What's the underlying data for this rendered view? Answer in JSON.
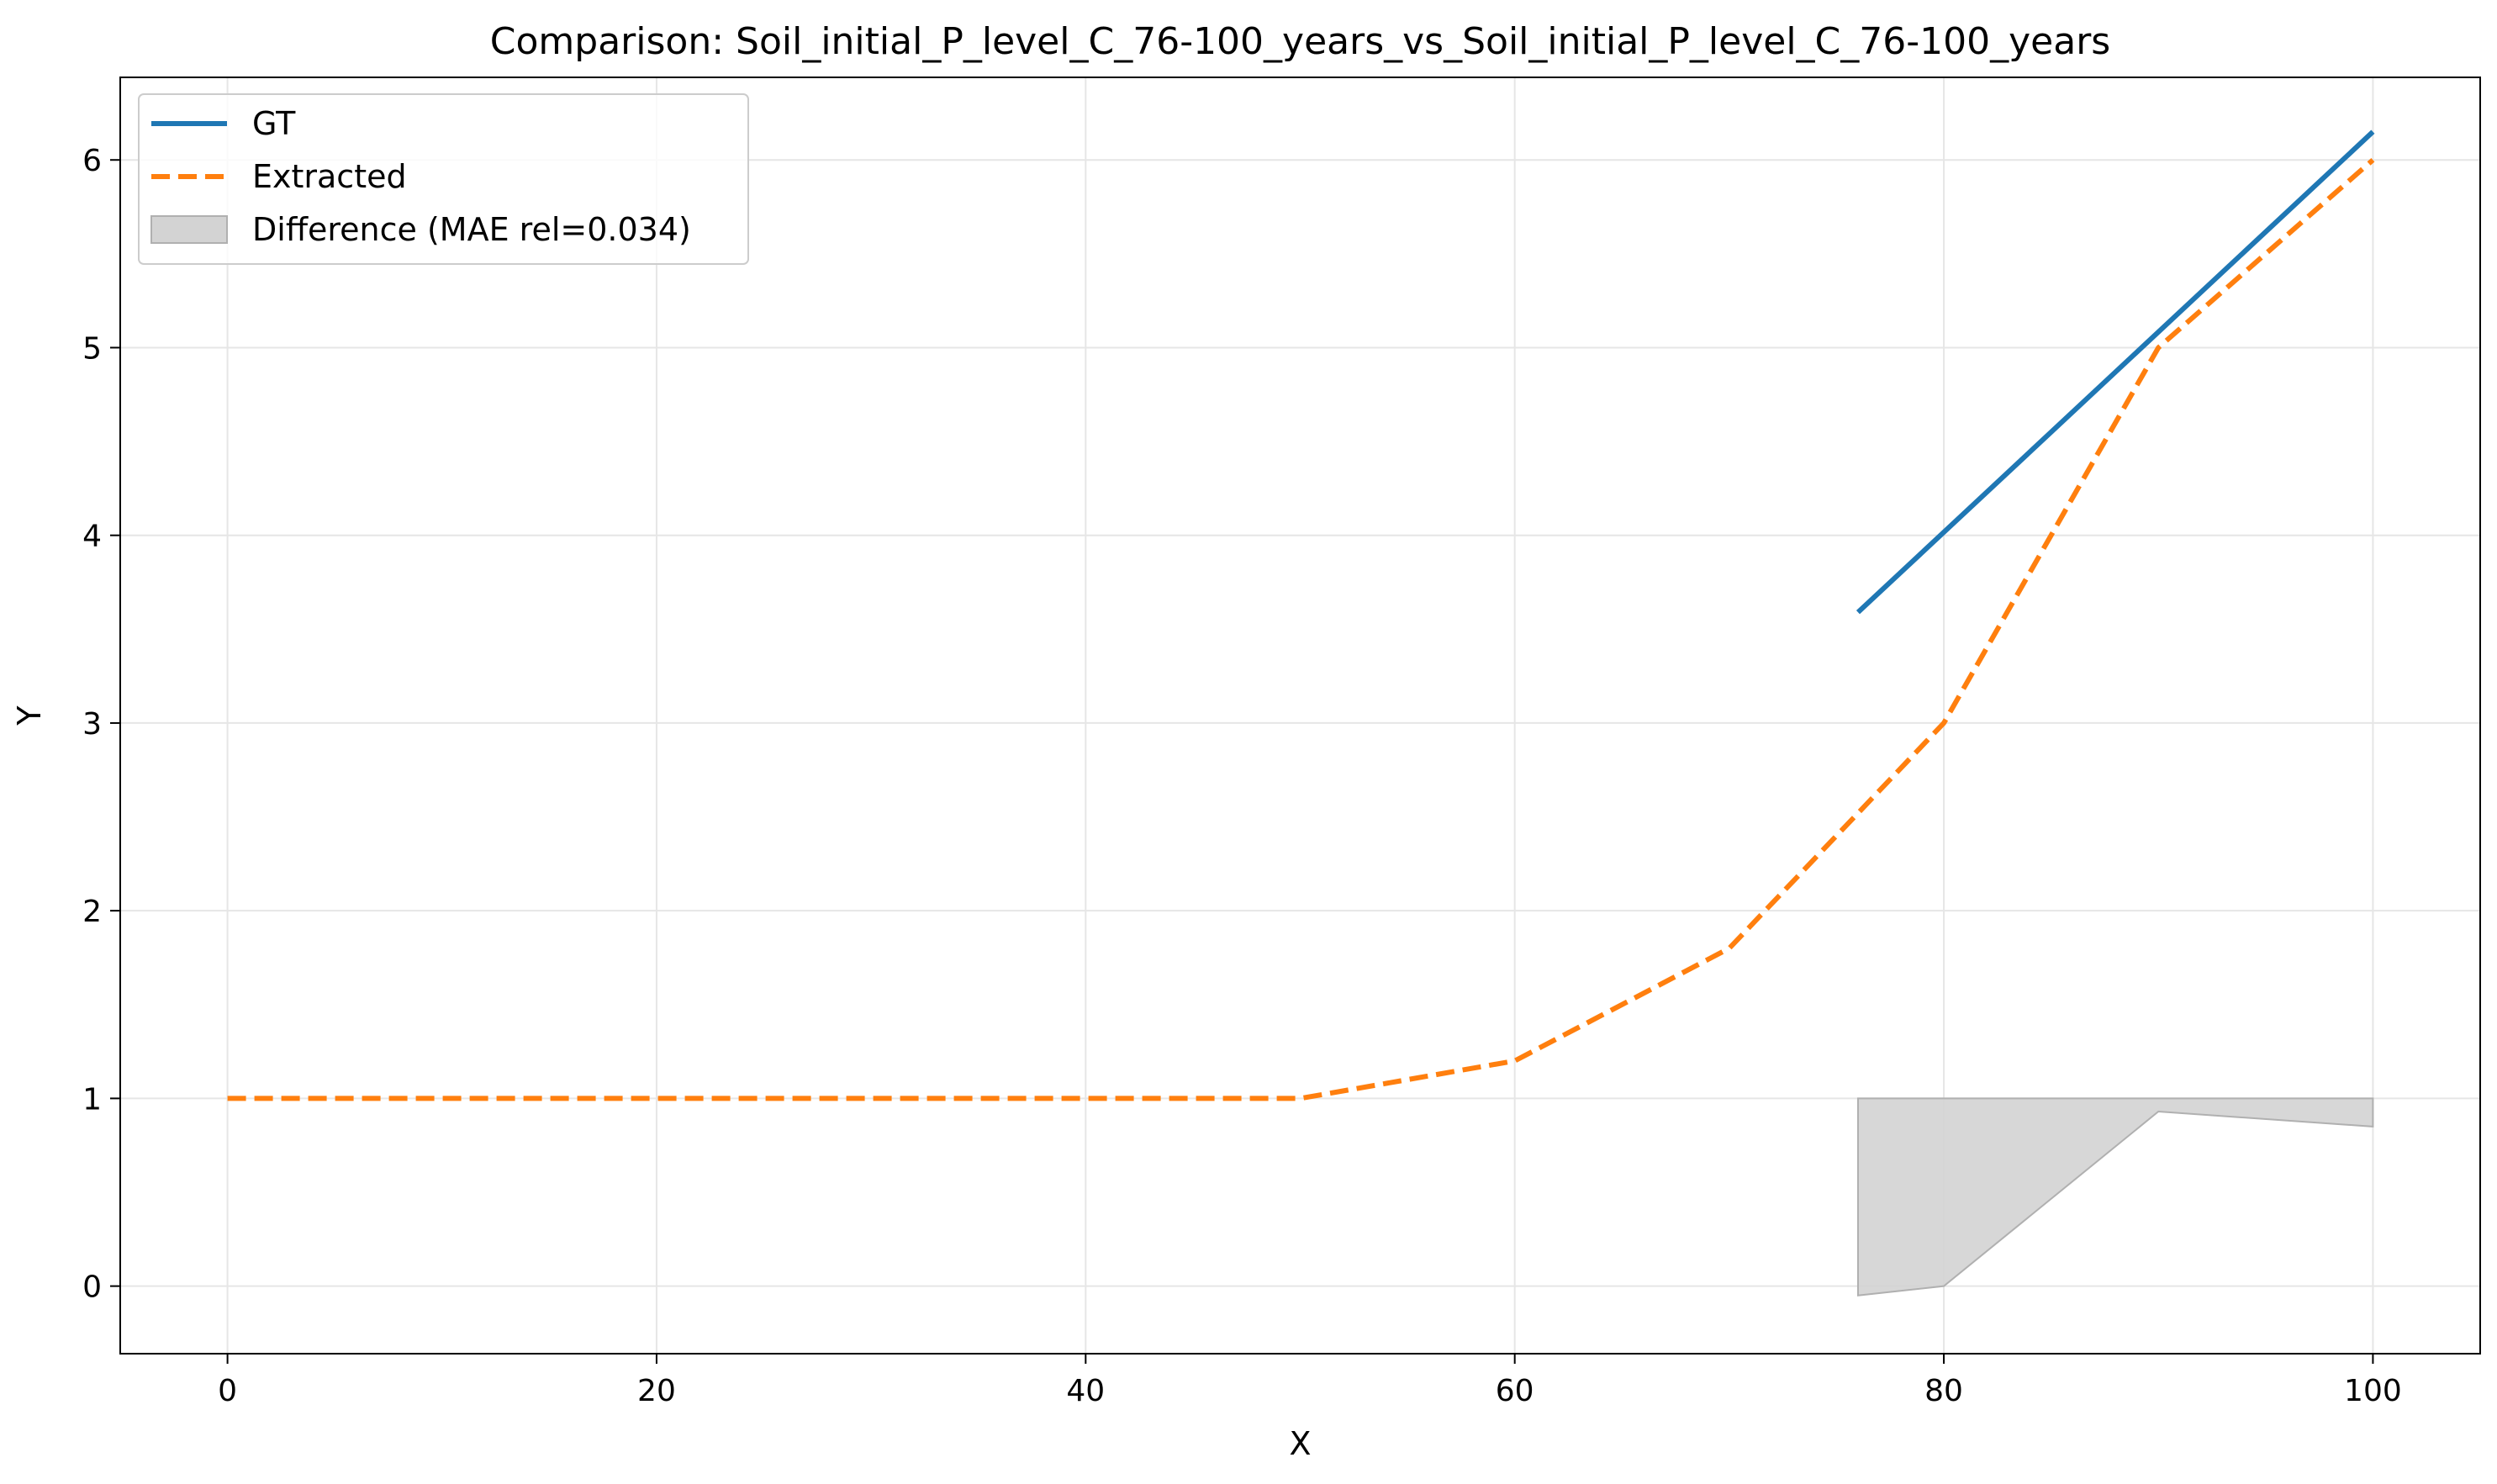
{
  "chart_data": {
    "type": "line",
    "title": "Comparison: Soil_initial_P_level_C_76-100_years_vs_Soil_initial_P_level_C_76-100_years",
    "xlabel": "X",
    "ylabel": "Y",
    "xlim": [
      -5,
      105
    ],
    "ylim": [
      -0.36,
      6.44
    ],
    "xticks": [
      0,
      20,
      40,
      60,
      80,
      100
    ],
    "yticks": [
      0,
      1,
      2,
      3,
      4,
      5,
      6
    ],
    "grid": true,
    "legend_position": "upper-left",
    "series": [
      {
        "name": "GT",
        "style": "solid",
        "color": "#1f77b4",
        "x": [
          76,
          100
        ],
        "y": [
          3.59,
          6.15
        ]
      },
      {
        "name": "Extracted",
        "style": "dashed",
        "color": "#ff7f0e",
        "x": [
          0,
          10,
          20,
          30,
          40,
          50,
          60,
          70,
          80,
          90,
          100
        ],
        "y": [
          1.0,
          1.0,
          1.0,
          1.0,
          1.0,
          1.0,
          1.2,
          1.8,
          3.0,
          5.0,
          6.0
        ]
      }
    ],
    "difference": {
      "name": "Difference (MAE rel=0.034)",
      "color": "#d3d3d3",
      "edge_color": "#b0b0b0",
      "x": [
        76,
        80,
        90,
        100
      ],
      "y_upper": [
        1.0,
        1.0,
        1.0,
        1.0
      ],
      "y_lower": [
        -0.05,
        0.0,
        0.93,
        0.85
      ]
    }
  }
}
